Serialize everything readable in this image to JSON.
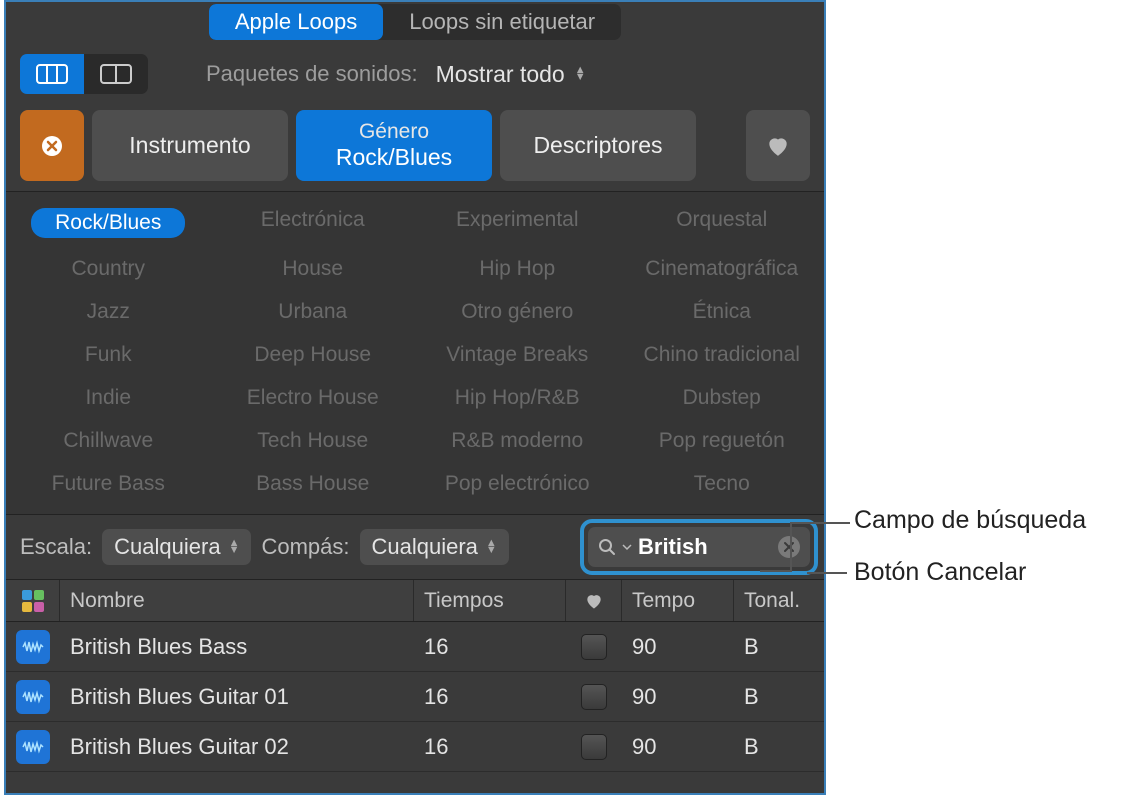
{
  "tabs": {
    "apple_loops": "Apple Loops",
    "untagged": "Loops sin etiquetar",
    "active": 0
  },
  "packets": {
    "label": "Paquetes de sonidos:",
    "value": "Mostrar todo"
  },
  "filters": {
    "instrument": "Instrumento",
    "genre_label": "Género",
    "genre_value": "Rock/Blues",
    "descriptors": "Descriptores"
  },
  "genres": {
    "cols": [
      [
        "Rock/Blues",
        "Country",
        "Jazz",
        "Funk",
        "Indie",
        "Chillwave",
        "Future Bass"
      ],
      [
        "Electrónica",
        "House",
        "Urbana",
        "Deep House",
        "Electro House",
        "Tech House",
        "Bass House"
      ],
      [
        "Experimental",
        "Hip Hop",
        "Otro género",
        "Vintage Breaks",
        "Hip Hop/R&B",
        "R&B moderno",
        "Pop electrónico"
      ],
      [
        "Orquestal",
        "Cinematográfica",
        "Étnica",
        "Chino tradicional",
        "Dubstep",
        "Pop reguetón",
        "Tecno"
      ]
    ],
    "selected": "Rock/Blues"
  },
  "scale": {
    "label": "Escala:",
    "value": "Cualquiera"
  },
  "signature": {
    "label": "Compás:",
    "value": "Cualquiera"
  },
  "search": {
    "value": "British"
  },
  "columns": {
    "name": "Nombre",
    "times": "Tiempos",
    "tempo": "Tempo",
    "key": "Tonal."
  },
  "grid_icon_colors": [
    "#3a9bdc",
    "#67c060",
    "#e6b93e",
    "#c95fa8"
  ],
  "rows": [
    {
      "name": "British Blues Bass",
      "times": "16",
      "tempo": "90",
      "key": "B"
    },
    {
      "name": "British Blues Guitar 01",
      "times": "16",
      "tempo": "90",
      "key": "B"
    },
    {
      "name": "British Blues Guitar 02",
      "times": "16",
      "tempo": "90",
      "key": "B"
    }
  ],
  "callouts": {
    "search_field": "Campo de búsqueda",
    "cancel_button": "Botón Cancelar"
  },
  "colors": {
    "accent": "#0d77d8",
    "panel_bg": "#3a3a3a",
    "orange": "#c26a1f",
    "ring": "#2f91cf"
  }
}
